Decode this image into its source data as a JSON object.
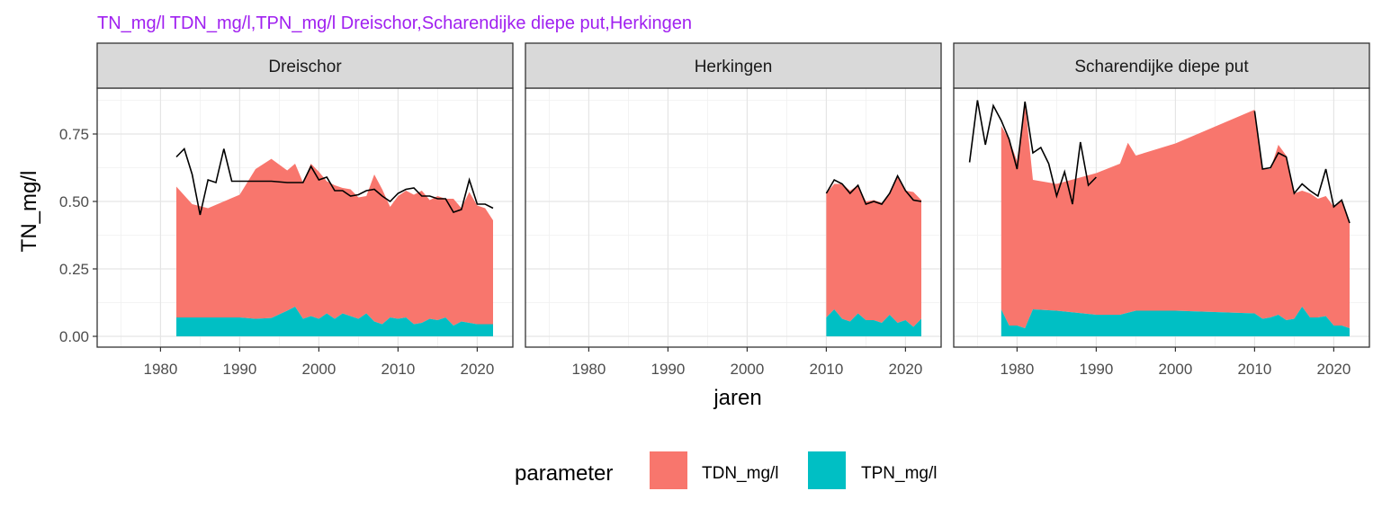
{
  "chart_data": {
    "type": "area",
    "title": "TN_mg/l TDN_mg/l,TPN_mg/l Dreischor,Scharendijke diepe put,Herkingen",
    "xlabel": "jaren",
    "ylabel": "TN_mg/l",
    "xlim": [
      1972,
      2024.5
    ],
    "ylim": [
      -0.04,
      0.92
    ],
    "x_ticks": [
      1980,
      1990,
      2000,
      2010,
      2020
    ],
    "y_ticks": [
      0.0,
      0.25,
      0.5,
      0.75
    ],
    "y_tick_labels": [
      "0.00",
      "0.25",
      "0.50",
      "0.75"
    ],
    "grid": true,
    "stacked": true,
    "legend": {
      "title": "parameter",
      "position": "bottom",
      "entries": [
        {
          "label": "TDN_mg/l",
          "color": "#F8766D"
        },
        {
          "label": "TPN_mg/l",
          "color": "#00BFC4"
        }
      ]
    },
    "line_color": "#000000",
    "panels": [
      {
        "name": "Dreischor",
        "TPN": {
          "x": [
            1982,
            1984,
            1986,
            1988,
            1990,
            1992,
            1994,
            1996,
            1997,
            1998,
            1999,
            2000,
            2001,
            2002,
            2003,
            2004,
            2005,
            2006,
            2007,
            2008,
            2009,
            2010,
            2011,
            2012,
            2013,
            2014,
            2015,
            2016,
            2017,
            2018,
            2019,
            2020,
            2021,
            2022
          ],
          "y": [
            0.07,
            0.07,
            0.07,
            0.07,
            0.07,
            0.065,
            0.068,
            0.095,
            0.11,
            0.065,
            0.075,
            0.065,
            0.085,
            0.065,
            0.085,
            0.075,
            0.065,
            0.085,
            0.055,
            0.045,
            0.07,
            0.065,
            0.07,
            0.045,
            0.05,
            0.065,
            0.06,
            0.07,
            0.04,
            0.055,
            0.05,
            0.045,
            0.045,
            0.045
          ]
        },
        "TDN": {
          "x": [
            1982,
            1984,
            1986,
            1988,
            1990,
            1992,
            1994,
            1996,
            1997,
            1998,
            1999,
            2000,
            2001,
            2002,
            2003,
            2004,
            2005,
            2006,
            2007,
            2008,
            2009,
            2010,
            2011,
            2012,
            2013,
            2014,
            2015,
            2016,
            2017,
            2018,
            2019,
            2020,
            2021,
            2022
          ],
          "y": [
            0.485,
            0.42,
            0.405,
            0.43,
            0.455,
            0.555,
            0.59,
            0.52,
            0.53,
            0.505,
            0.565,
            0.545,
            0.49,
            0.495,
            0.465,
            0.47,
            0.45,
            0.435,
            0.545,
            0.5,
            0.41,
            0.455,
            0.47,
            0.48,
            0.49,
            0.44,
            0.46,
            0.44,
            0.47,
            0.42,
            0.485,
            0.44,
            0.43,
            0.385
          ]
        },
        "TN_line": {
          "x": [
            1982,
            1983,
            1984,
            1985,
            1986,
            1987,
            1988,
            1989,
            1990,
            1992,
            1994,
            1996,
            1998,
            1999,
            2000,
            2001,
            2002,
            2003,
            2004,
            2005,
            2006,
            2007,
            2008,
            2009,
            2010,
            2011,
            2012,
            2013,
            2014,
            2015,
            2016,
            2017,
            2018,
            2019,
            2020,
            2021,
            2022
          ],
          "y": [
            0.665,
            0.695,
            0.6,
            0.45,
            0.58,
            0.57,
            0.695,
            0.575,
            0.575,
            0.575,
            0.575,
            0.57,
            0.57,
            0.63,
            0.58,
            0.59,
            0.54,
            0.54,
            0.52,
            0.525,
            0.54,
            0.545,
            0.52,
            0.5,
            0.53,
            0.545,
            0.55,
            0.52,
            0.52,
            0.51,
            0.51,
            0.46,
            0.47,
            0.58,
            0.49,
            0.49,
            0.475
          ]
        }
      },
      {
        "name": "Herkingen",
        "TPN": {
          "x": [
            2010,
            2011,
            2012,
            2013,
            2014,
            2015,
            2016,
            2017,
            2018,
            2019,
            2020,
            2021,
            2022
          ],
          "y": [
            0.07,
            0.1,
            0.065,
            0.055,
            0.085,
            0.06,
            0.06,
            0.05,
            0.08,
            0.05,
            0.06,
            0.035,
            0.065
          ]
        },
        "TDN": {
          "x": [
            2010,
            2011,
            2012,
            2013,
            2014,
            2015,
            2016,
            2017,
            2018,
            2019,
            2020,
            2021,
            2022
          ],
          "y": [
            0.46,
            0.465,
            0.5,
            0.485,
            0.475,
            0.44,
            0.445,
            0.445,
            0.445,
            0.545,
            0.48,
            0.5,
            0.44
          ]
        },
        "TN_line": {
          "x": [
            2010,
            2011,
            2012,
            2013,
            2014,
            2015,
            2016,
            2017,
            2018,
            2019,
            2020,
            2021,
            2022
          ],
          "y": [
            0.53,
            0.58,
            0.565,
            0.53,
            0.56,
            0.49,
            0.5,
            0.49,
            0.53,
            0.595,
            0.54,
            0.505,
            0.5
          ]
        }
      },
      {
        "name": "Scharendijke diepe put",
        "TPN": {
          "x": [
            1978,
            1979,
            1980,
            1981,
            1982,
            1985,
            1990,
            1993,
            1995,
            2000,
            2010,
            2011,
            2012,
            2013,
            2014,
            2015,
            2016,
            2017,
            2018,
            2019,
            2020,
            2021,
            2022
          ],
          "y": [
            0.1,
            0.04,
            0.04,
            0.03,
            0.1,
            0.095,
            0.08,
            0.08,
            0.095,
            0.095,
            0.085,
            0.065,
            0.07,
            0.08,
            0.06,
            0.065,
            0.11,
            0.07,
            0.07,
            0.075,
            0.04,
            0.04,
            0.03
          ]
        },
        "TDN": {
          "x": [
            1978,
            1979,
            1980,
            1981,
            1982,
            1985,
            1990,
            1993,
            1994,
            1995,
            2000,
            2010,
            2011,
            2012,
            2013,
            2014,
            2015,
            2016,
            2017,
            2018,
            2019,
            2020,
            2021,
            2022
          ],
          "y": [
            0.68,
            0.69,
            0.61,
            0.84,
            0.48,
            0.47,
            0.525,
            0.56,
            0.63,
            0.575,
            0.62,
            0.755,
            0.555,
            0.55,
            0.63,
            0.61,
            0.465,
            0.43,
            0.46,
            0.44,
            0.445,
            0.44,
            0.465,
            0.39
          ]
        },
        "TN_line": {
          "x": [
            1974,
            1975,
            1976,
            1977,
            1978,
            1979,
            1980,
            1981,
            1982,
            1983,
            1984,
            1985,
            1986,
            1987,
            1988,
            1989,
            1990
          ],
          "y": [
            0.645,
            0.875,
            0.71,
            0.855,
            0.8,
            0.73,
            0.62,
            0.87,
            0.68,
            0.7,
            0.64,
            0.52,
            0.61,
            0.49,
            0.72,
            0.56,
            0.59
          ]
        },
        "TN_line_2": {
          "x": [
            2010,
            2011,
            2012,
            2013,
            2014,
            2015,
            2016,
            2017,
            2018,
            2019,
            2020,
            2021,
            2022
          ],
          "y": [
            0.835,
            0.62,
            0.625,
            0.68,
            0.665,
            0.53,
            0.565,
            0.54,
            0.52,
            0.62,
            0.48,
            0.505,
            0.42
          ]
        }
      }
    ]
  }
}
